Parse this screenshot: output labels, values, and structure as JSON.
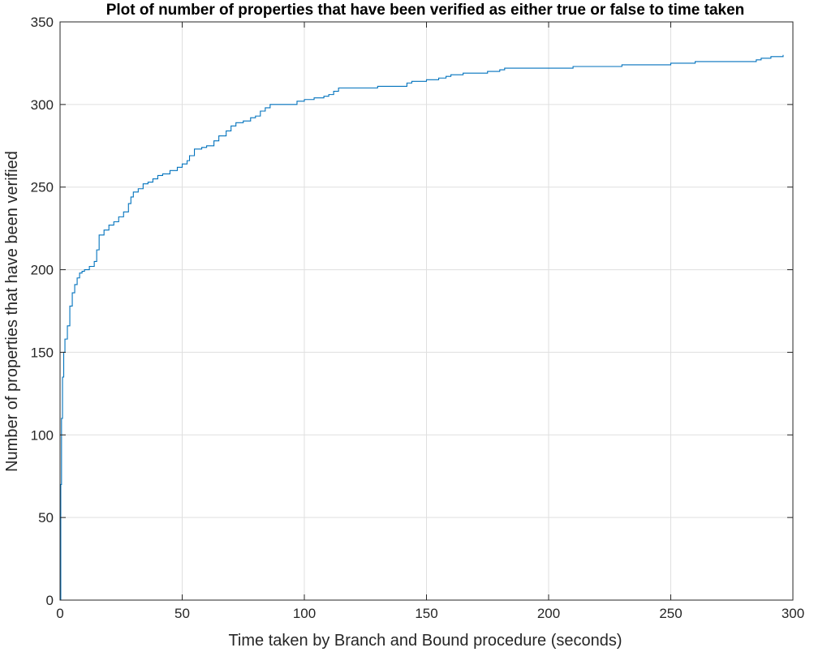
{
  "chart_data": {
    "type": "line",
    "title": "Plot of number of properties that have been verified as either true or false to time taken",
    "xlabel": "Time taken by Branch and Bound procedure (seconds)",
    "ylabel": "Number of properties that have been verified",
    "xlim": [
      0,
      300
    ],
    "ylim": [
      0,
      350
    ],
    "xticks": [
      0,
      50,
      100,
      150,
      200,
      250,
      300
    ],
    "yticks": [
      0,
      50,
      100,
      150,
      200,
      250,
      300,
      350
    ],
    "xtick_labels": [
      "0",
      "50",
      "100",
      "150",
      "200",
      "250",
      "300"
    ],
    "ytick_labels": [
      "0",
      "50",
      "100",
      "150",
      "200",
      "250",
      "300",
      "350"
    ],
    "grid": true,
    "line_style": "stairs",
    "series": [
      {
        "color": "#0072BD",
        "x": [
          0,
          0.3,
          0.6,
          1,
          1.5,
          2,
          3,
          4,
          5,
          6,
          7,
          8,
          9,
          10,
          12,
          14,
          15,
          16,
          18,
          20,
          22,
          24,
          26,
          28,
          29,
          30,
          32,
          34,
          36,
          38,
          40,
          42,
          45,
          48,
          50,
          52,
          53,
          55,
          58,
          60,
          63,
          65,
          68,
          70,
          72,
          75,
          78,
          80,
          82,
          84,
          86,
          90,
          95,
          97,
          100,
          104,
          108,
          110,
          112,
          114,
          120,
          130,
          142,
          144,
          150,
          155,
          158,
          160,
          165,
          170,
          175,
          180,
          182,
          190,
          200,
          210,
          220,
          230,
          250,
          255,
          260,
          270,
          285,
          287,
          289,
          291,
          293,
          296
        ],
        "y": [
          0,
          70,
          110,
          135,
          150,
          158,
          166,
          178,
          186,
          191,
          195,
          198,
          199,
          200,
          202,
          205,
          212,
          221,
          224,
          227,
          229,
          232,
          235,
          240,
          244,
          247,
          249,
          252,
          253,
          255,
          257,
          258,
          260,
          262,
          264,
          266,
          269,
          273,
          274,
          275,
          278,
          281,
          284,
          287,
          289,
          290,
          292,
          293,
          296,
          298,
          300,
          300,
          300,
          302,
          303,
          304,
          305,
          306,
          308,
          310,
          310,
          311,
          313,
          314,
          315,
          316,
          317,
          318,
          319,
          319,
          320,
          321,
          322,
          322,
          322,
          323,
          323,
          324,
          325,
          325,
          326,
          326,
          327,
          328,
          328,
          329,
          329,
          330
        ]
      }
    ]
  }
}
